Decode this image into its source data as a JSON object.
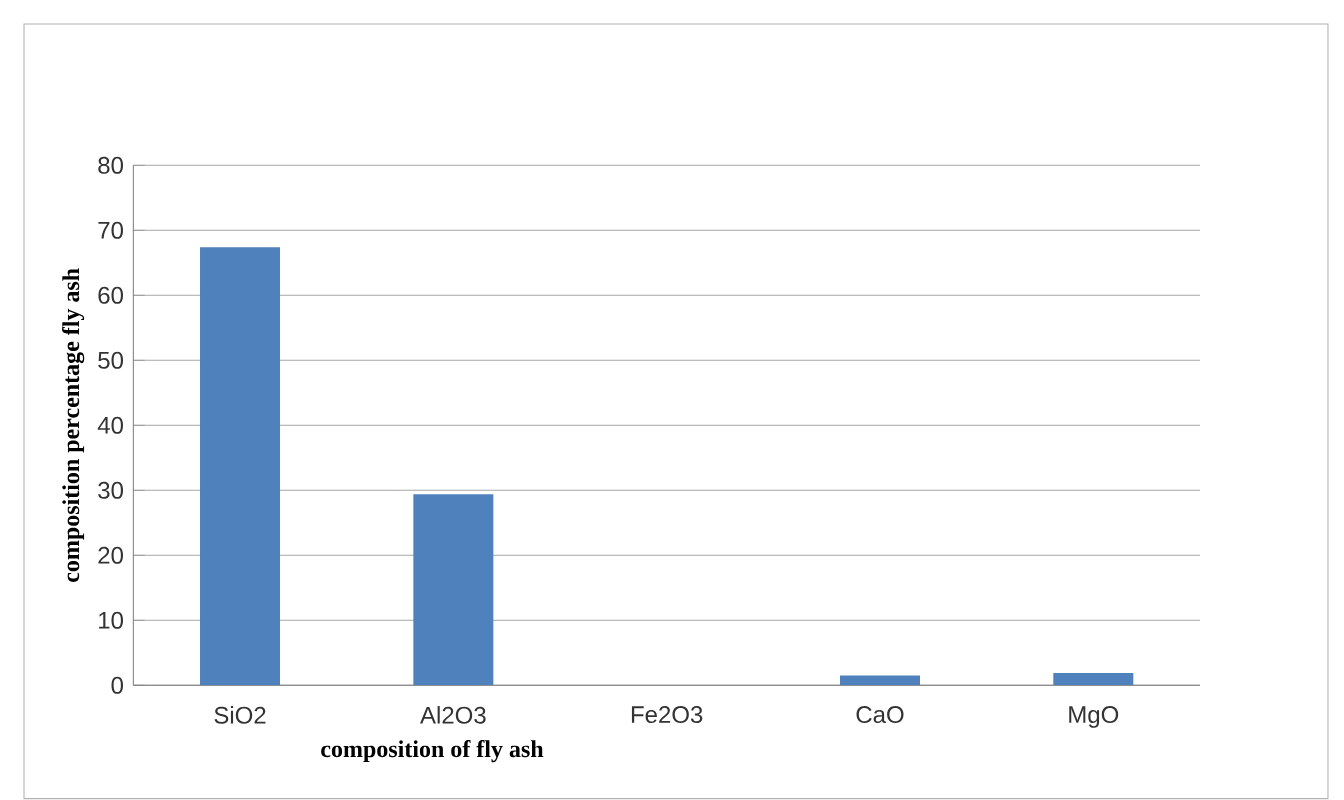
{
  "chart_data": {
    "type": "bar",
    "xlabel": "composition of fly ash",
    "ylabel": "composition percentage fly ash",
    "categories": [
      "SiO2",
      "Al2O3",
      "Fe2O3",
      "CaO",
      "MgO"
    ],
    "values": [
      67.4,
      29.4,
      0,
      1.5,
      1.9
    ],
    "color": "#4f81bd",
    "ylim": [
      0,
      80
    ],
    "yticks": [
      0,
      10,
      20,
      30,
      40,
      50,
      60,
      70,
      80
    ],
    "grid": "y"
  }
}
